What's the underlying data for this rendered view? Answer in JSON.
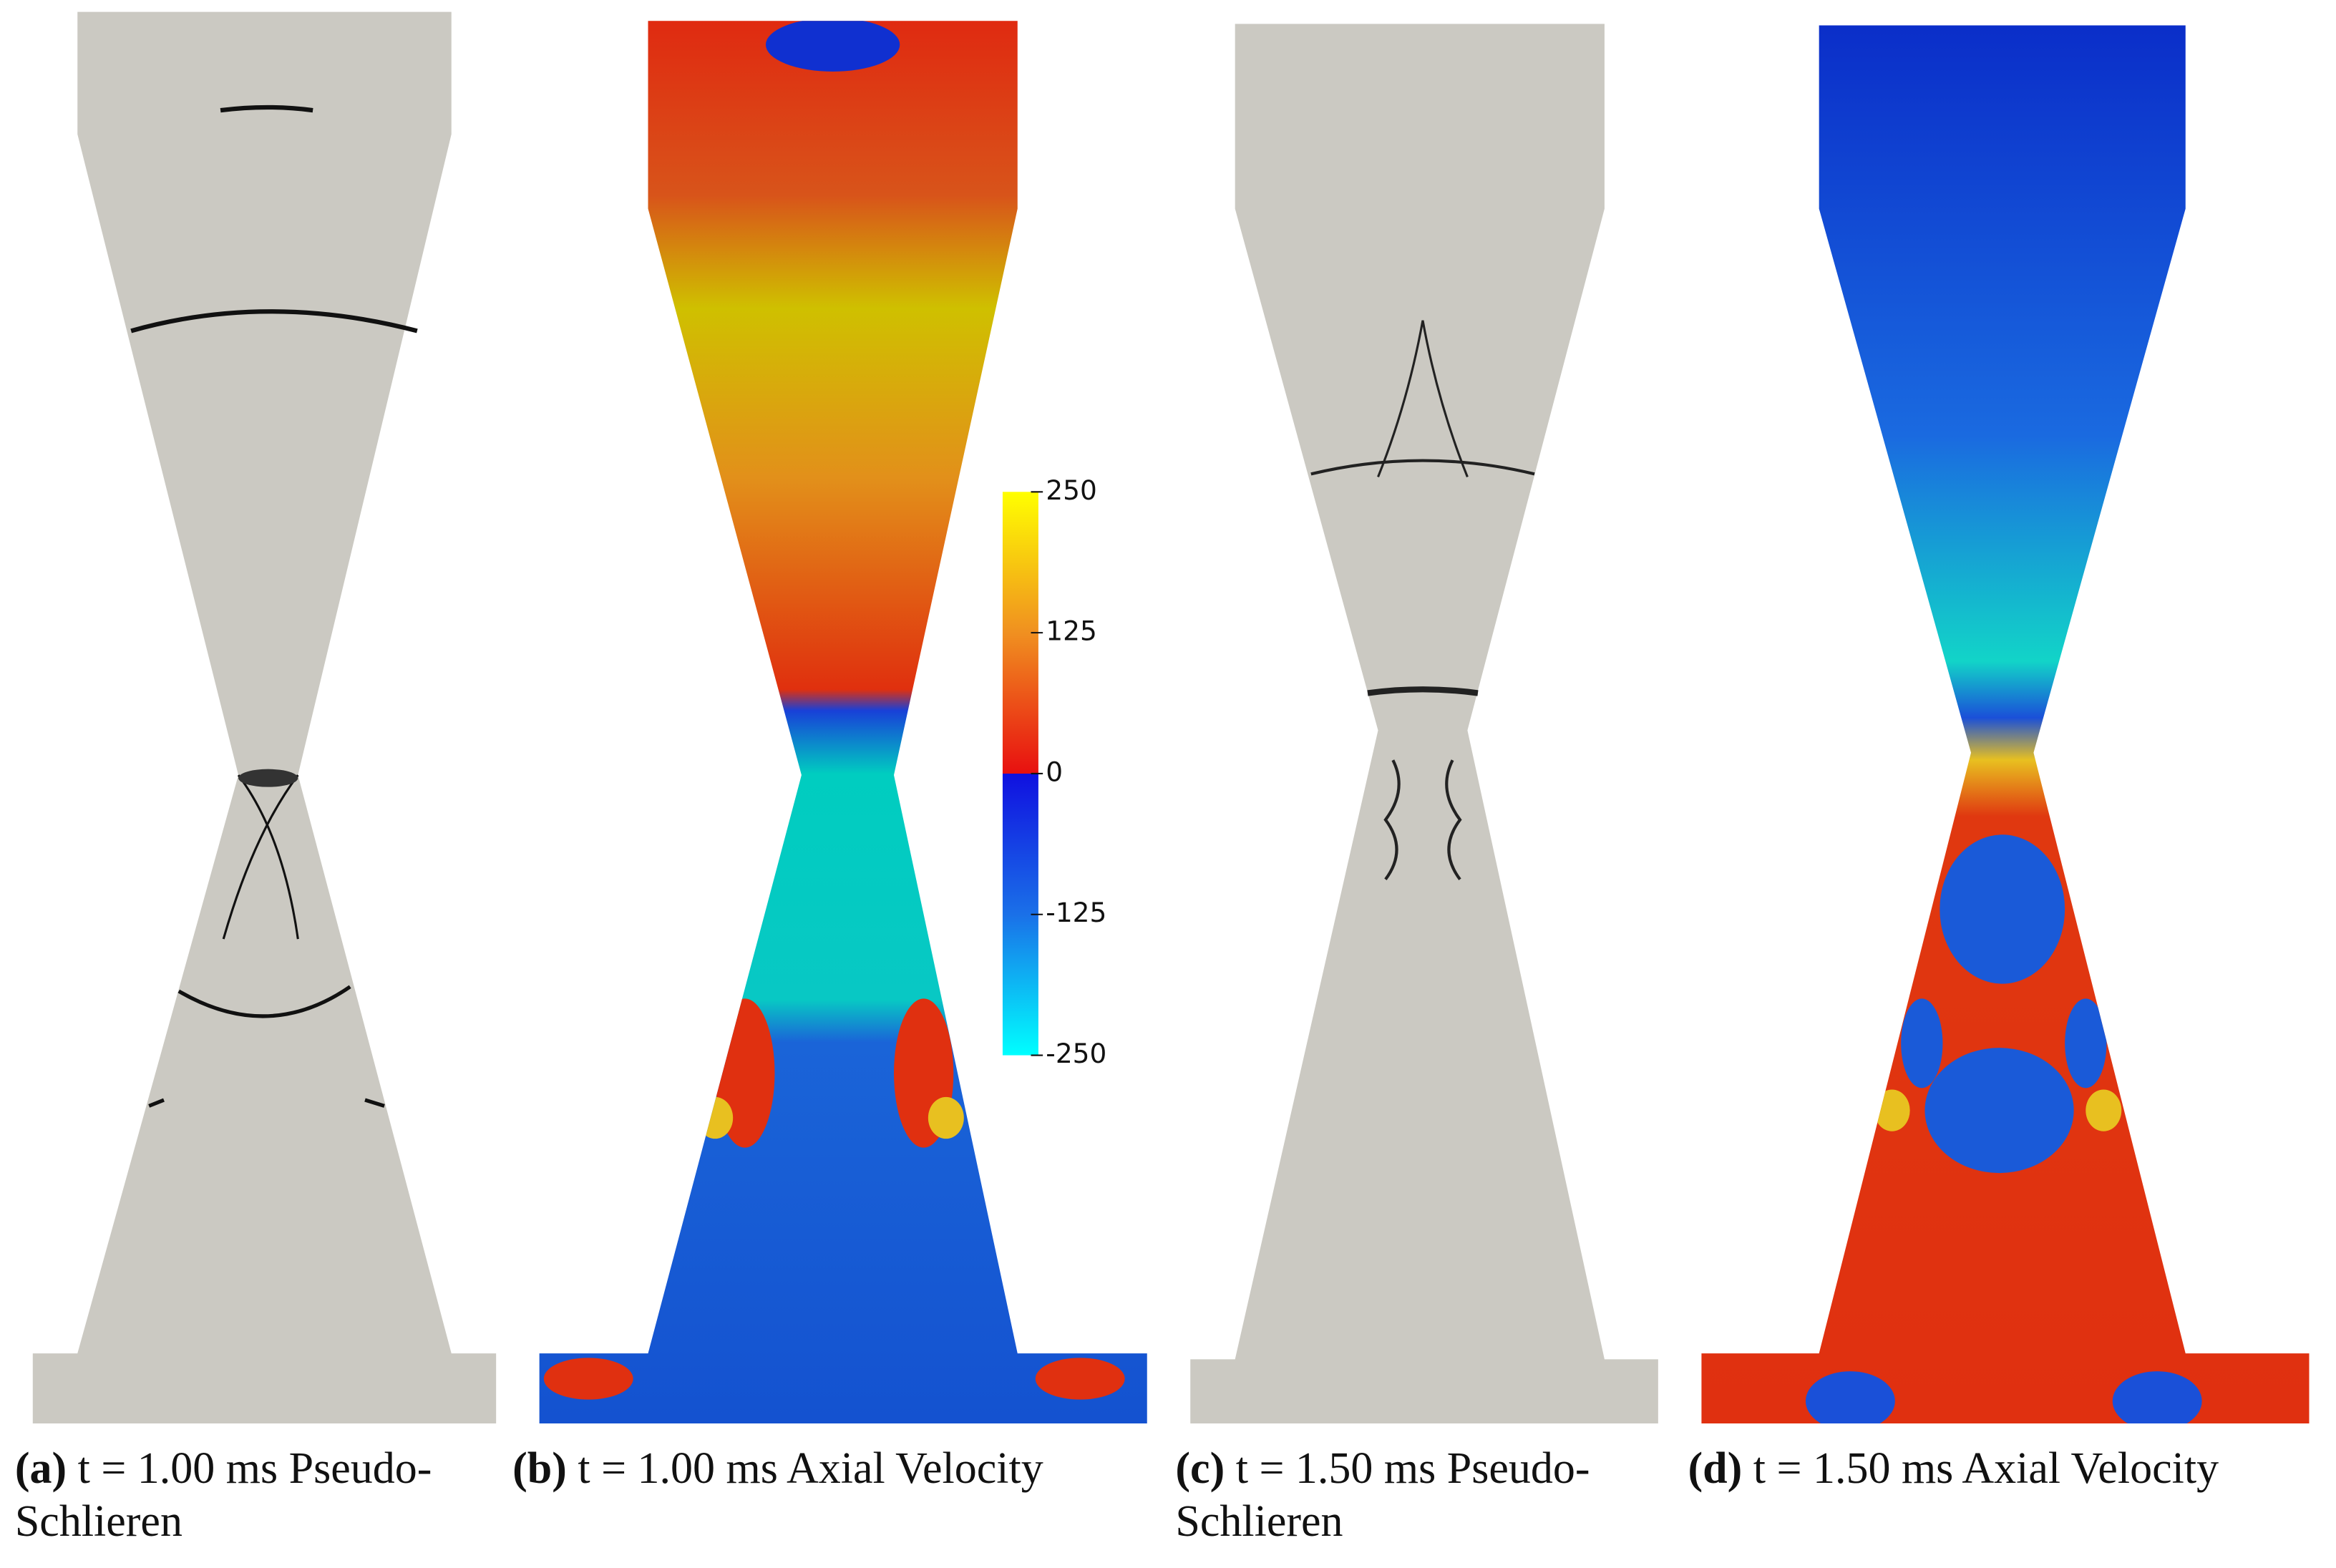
{
  "panels": [
    {
      "label": "(a)",
      "caption": "t = 1.00 ms Pseudo-Schlieren"
    },
    {
      "label": "(b)",
      "caption": "t = 1.00 ms Axial Velocity"
    },
    {
      "label": "(c)",
      "caption": "t = 1.50 ms Pseudo-Schlieren"
    },
    {
      "label": "(d)",
      "caption": "t = 1.50 ms Axial Velocity"
    }
  ],
  "colorbar": {
    "lim": [
      -250,
      250
    ],
    "ticks": [
      250,
      125,
      0,
      -125,
      -250
    ]
  }
}
